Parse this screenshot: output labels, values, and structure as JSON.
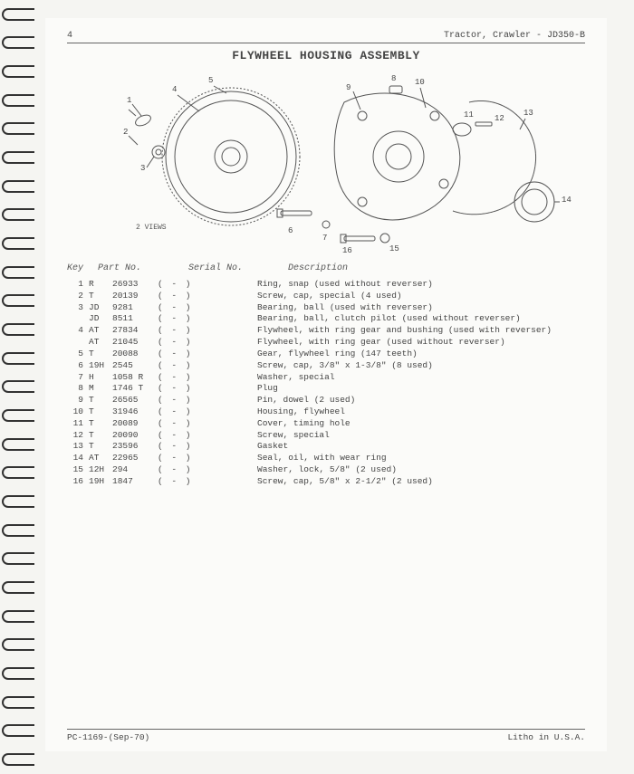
{
  "header": {
    "page_num": "4",
    "doc_title": "Tractor, Crawler - JD350-B"
  },
  "title": "FLYWHEEL HOUSING ASSEMBLY",
  "diagram": {
    "callouts": [
      "1",
      "2",
      "3",
      "4",
      "5",
      "6",
      "7",
      "8",
      "9",
      "10",
      "11",
      "12",
      "13",
      "14",
      "15",
      "16"
    ],
    "note": "2 VIEWS",
    "stroke": "#555",
    "fill": "none"
  },
  "columns": {
    "key": "Key",
    "part": "Part No.",
    "serial": "Serial No.",
    "desc": "Description"
  },
  "rows": [
    {
      "key": "1",
      "pre": "R",
      "num": "26933",
      "desc": "Ring, snap (used without reverser)"
    },
    {
      "key": "2",
      "pre": "T",
      "num": "20139",
      "desc": "Screw, cap, special (4 used)"
    },
    {
      "key": "3",
      "pre": "JD",
      "num": "9281",
      "desc": "Bearing, ball (used with reverser)"
    },
    {
      "key": "",
      "pre": "JD",
      "num": "8511",
      "desc": "Bearing, ball, clutch pilot (used without reverser)"
    },
    {
      "key": "4",
      "pre": "AT",
      "num": "27834",
      "desc": "Flywheel, with ring gear and bushing (used with reverser)"
    },
    {
      "key": "",
      "pre": "AT",
      "num": "21045",
      "desc": "Flywheel, with ring gear (used without reverser)"
    },
    {
      "key": "5",
      "pre": "T",
      "num": "20088",
      "desc": "Gear, flywheel ring (147 teeth)"
    },
    {
      "key": "6",
      "pre": "19H",
      "num": "2545",
      "desc": "Screw, cap, 3/8\" x 1-3/8\" (8 used)"
    },
    {
      "key": "7",
      "pre": "H",
      "num": "1058 R",
      "desc": "Washer, special"
    },
    {
      "key": "8",
      "pre": "M",
      "num": "1746 T",
      "desc": "Plug"
    },
    {
      "key": "9",
      "pre": "T",
      "num": "26565",
      "desc": "Pin, dowel (2 used)"
    },
    {
      "key": "10",
      "pre": "T",
      "num": "31946",
      "desc": "Housing, flywheel"
    },
    {
      "key": "11",
      "pre": "T",
      "num": "20089",
      "desc": "Cover, timing hole"
    },
    {
      "key": "12",
      "pre": "T",
      "num": "20090",
      "desc": "Screw, special"
    },
    {
      "key": "13",
      "pre": "T",
      "num": "23596",
      "desc": "Gasket"
    },
    {
      "key": "14",
      "pre": "AT",
      "num": "22965",
      "desc": "Seal, oil, with wear ring"
    },
    {
      "key": "15",
      "pre": "12H",
      "num": "294",
      "desc": "Washer, lock, 5/8\" (2 used)"
    },
    {
      "key": "16",
      "pre": "19H",
      "num": "1847",
      "desc": "Screw, cap, 5/8\" x 2-1/2\" (2 used)"
    }
  ],
  "serial_placeholder": "( - )",
  "footer": {
    "left": "PC-1169-(Sep-70)",
    "right": "Litho in U.S.A."
  }
}
